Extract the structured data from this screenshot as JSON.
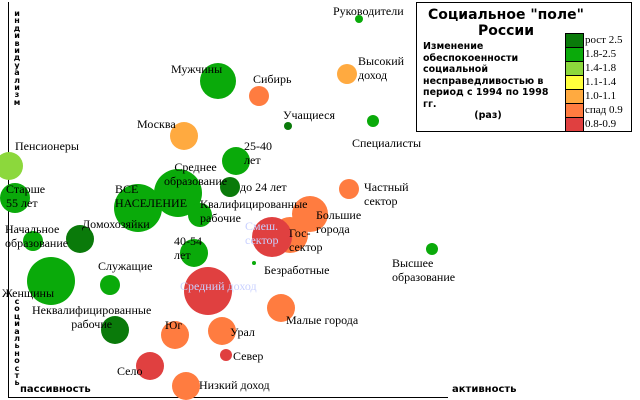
{
  "chart_data": {
    "type": "scatter",
    "subtype": "bubble",
    "title": "Социальное \"поле\"\nРоссии",
    "legend_title": "Изменение обеспокоенности социальной несправедливостью в период с 1994 по 1998 гг.",
    "legend_unit": "(раз)",
    "legend_placement": "top-right",
    "xlabel_left": "пассивность",
    "xlabel_right": "активность",
    "ylabel_top": "индивидуализм",
    "ylabel_bottom": "социальность",
    "xlim": [
      0,
      100
    ],
    "ylim": [
      0,
      100
    ],
    "grid": false,
    "categories": [
      {
        "label": "рост 2.5",
        "color": "#0a7a0a"
      },
      {
        "label": "1.8-2.5",
        "color": "#0aaa0a"
      },
      {
        "label": "1.4-1.8",
        "color": "#8cd83c"
      },
      {
        "label": "1.1-1.4",
        "color": "#ffff3c"
      },
      {
        "label": "1.0-1.1",
        "color": "#ffaa40"
      },
      {
        "label": "спад 0.9",
        "color": "#ff7c40"
      },
      {
        "label": "0.8-0.9",
        "color": "#e04040"
      }
    ],
    "points": [
      {
        "label": "Руководители",
        "x": 80.3,
        "y": 96.4,
        "size": 4,
        "cat": 1
      },
      {
        "label": "Высокий\nдоход",
        "x": 77.6,
        "y": 82.4,
        "size": 10,
        "cat": 4
      },
      {
        "label": "Мужчины",
        "x": 48.1,
        "y": 80.6,
        "size": 18,
        "cat": 1
      },
      {
        "label": "Сибирь",
        "x": 57.4,
        "y": 76.8,
        "size": 10,
        "cat": 5
      },
      {
        "label": "Учащиеся",
        "x": 64.1,
        "y": 69.1,
        "size": 4,
        "cat": 0
      },
      {
        "label": "Специалисты",
        "x": 83.5,
        "y": 70.4,
        "size": 6,
        "cat": 1
      },
      {
        "label": "Москва",
        "x": 40.3,
        "y": 66.6,
        "size": 14,
        "cat": 4
      },
      {
        "label": "Пенсионеры",
        "x": 0.2,
        "y": 58.9,
        "size": 14,
        "cat": 2
      },
      {
        "label": "25-40\nлет",
        "x": 52.2,
        "y": 60.2,
        "size": 14,
        "cat": 1
      },
      {
        "label": "Старше\n55 лет",
        "x": 1.6,
        "y": 50.8,
        "size": 15,
        "cat": 1
      },
      {
        "label": "Среднее\nобразование",
        "x": 38.9,
        "y": 52.0,
        "size": 24,
        "cat": 1
      },
      {
        "label": "ВСЕ\nНАСЕЛЕНИЕ",
        "x": 29.7,
        "y": 48.2,
        "size": 24,
        "cat": 1
      },
      {
        "label": "до 24 лет",
        "x": 50.8,
        "y": 53.6,
        "size": 10,
        "cat": 0
      },
      {
        "label": "Частный\nсектор",
        "x": 78.0,
        "y": 53.1,
        "size": 10,
        "cat": 5
      },
      {
        "label": "Большие\nгорода",
        "x": 69.1,
        "y": 46.7,
        "size": 18,
        "cat": 5
      },
      {
        "label": "Квалифицированные\nрабочие",
        "x": 43.9,
        "y": 46.4,
        "size": 12,
        "cat": 1
      },
      {
        "label": "Гос-\nсектор",
        "x": 64.5,
        "y": 41.3,
        "size": 18,
        "cat": 5
      },
      {
        "label": "Смеш.\nсектор",
        "x": 60.4,
        "y": 40.8,
        "size": 20,
        "cat": 6
      },
      {
        "label": "Начальное\nобразование",
        "x": 5.7,
        "y": 39.8,
        "size": 10,
        "cat": 1
      },
      {
        "label": "Домохозяйки",
        "x": 16.5,
        "y": 40.3,
        "size": 14,
        "cat": 0
      },
      {
        "label": "40-54\nлет",
        "x": 42.6,
        "y": 36.7,
        "size": 14,
        "cat": 1
      },
      {
        "label": "Высшее\nобразование",
        "x": 97.0,
        "y": 37.8,
        "size": 6,
        "cat": 1
      },
      {
        "label": "Безработные",
        "x": 56.3,
        "y": 34.2,
        "size": 2,
        "cat": 1
      },
      {
        "label": "Женщины",
        "x": 9.8,
        "y": 29.6,
        "size": 24,
        "cat": 1
      },
      {
        "label": "Служащие",
        "x": 23.3,
        "y": 28.6,
        "size": 10,
        "cat": 1
      },
      {
        "label": "Средний доход",
        "x": 45.8,
        "y": 27.0,
        "size": 24,
        "cat": 6
      },
      {
        "label": "Малые города",
        "x": 62.5,
        "y": 22.7,
        "size": 14,
        "cat": 5
      },
      {
        "label": "Неквалифицированные\nрабочие",
        "x": 24.5,
        "y": 17.1,
        "size": 14,
        "cat": 0
      },
      {
        "label": "Юг",
        "x": 38.2,
        "y": 15.8,
        "size": 14,
        "cat": 5
      },
      {
        "label": "Урал",
        "x": 49.0,
        "y": 16.8,
        "size": 14,
        "cat": 5
      },
      {
        "label": "Север",
        "x": 49.9,
        "y": 10.7,
        "size": 6,
        "cat": 6
      },
      {
        "label": "Село",
        "x": 32.5,
        "y": 7.9,
        "size": 14,
        "cat": 6
      },
      {
        "label": "Низкий доход",
        "x": 40.7,
        "y": 2.8,
        "size": 14,
        "cat": 5
      }
    ]
  }
}
